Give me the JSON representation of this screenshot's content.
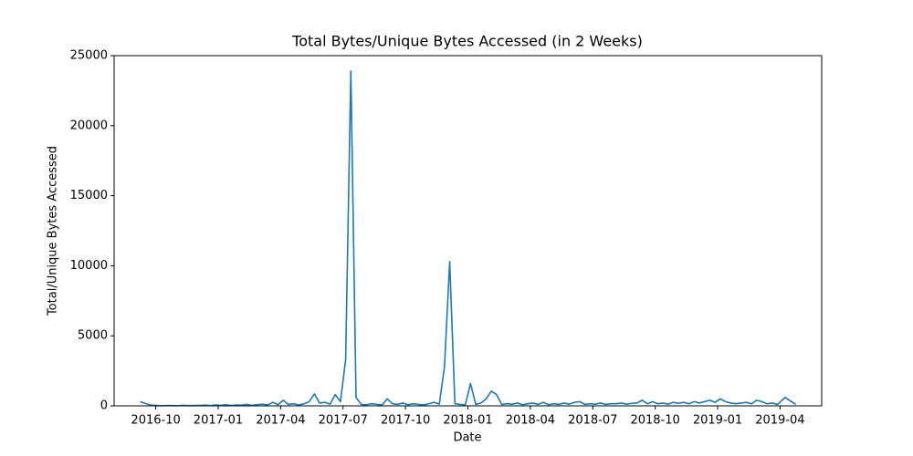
{
  "chart_data": {
    "type": "line",
    "title": "Total Bytes/Unique Bytes Accessed (in 2 Weeks)",
    "x_label": "Date",
    "y_label": "Total/Unique Bytes Accessed",
    "x": [
      "2016-09",
      "2016-09",
      "2016-10",
      "2016-10",
      "2016-10",
      "2016-10",
      "2016-11",
      "2016-11",
      "2016-11",
      "2016-11",
      "2016-12",
      "2016-12",
      "2016-12",
      "2016-12",
      "2017-01",
      "2017-01",
      "2017-01",
      "2017-01",
      "2017-02",
      "2017-02",
      "2017-02",
      "2017-02",
      "2017-03",
      "2017-03",
      "2017-03",
      "2017-03",
      "2017-04",
      "2017-04",
      "2017-04",
      "2017-04",
      "2017-05",
      "2017-05",
      "2017-05",
      "2017-05",
      "2017-06",
      "2017-06",
      "2017-06",
      "2017-06",
      "2017-07",
      "2017-07",
      "2017-07",
      "2017-07",
      "2017-08",
      "2017-08",
      "2017-08",
      "2017-08",
      "2017-09",
      "2017-09",
      "2017-09",
      "2017-09",
      "2017-10",
      "2017-10",
      "2017-10",
      "2017-10",
      "2017-11",
      "2017-11",
      "2017-11",
      "2017-11",
      "2017-12",
      "2017-12",
      "2017-12",
      "2017-12",
      "2018-01",
      "2018-01",
      "2018-01",
      "2018-01",
      "2018-02",
      "2018-02",
      "2018-02",
      "2018-02",
      "2018-03",
      "2018-03",
      "2018-03",
      "2018-03",
      "2018-04",
      "2018-04",
      "2018-04",
      "2018-04",
      "2018-05",
      "2018-05",
      "2018-05",
      "2018-05",
      "2018-06",
      "2018-06",
      "2018-06",
      "2018-06",
      "2018-07",
      "2018-07",
      "2018-07",
      "2018-07",
      "2018-08",
      "2018-08",
      "2018-08",
      "2018-08",
      "2018-09",
      "2018-09",
      "2018-09",
      "2018-09",
      "2018-10",
      "2018-10",
      "2018-10",
      "2018-10",
      "2018-11",
      "2018-11",
      "2018-11",
      "2018-11",
      "2018-12",
      "2018-12",
      "2018-12",
      "2018-12",
      "2019-01",
      "2019-01",
      "2019-01",
      "2019-01",
      "2019-02",
      "2019-02",
      "2019-02",
      "2019-02",
      "2019-03",
      "2019-03",
      "2019-03",
      "2019-03",
      "2019-04",
      "2019-04"
    ],
    "series": [
      {
        "color": "#1f77b4",
        "values": [
          300,
          50,
          20,
          10,
          30,
          15,
          20,
          40,
          10,
          30,
          30,
          50,
          20,
          60,
          40,
          80,
          30,
          60,
          50,
          100,
          40,
          90,
          120,
          60,
          250,
          80,
          400,
          100,
          150,
          60,
          150,
          300,
          850,
          200,
          250,
          120,
          800,
          300,
          3300,
          23900,
          600,
          100,
          80,
          150,
          100,
          60,
          500,
          150,
          100,
          200,
          80,
          150,
          100,
          60,
          150,
          250,
          120,
          2800,
          10300,
          150,
          100,
          80,
          1600,
          100,
          200,
          500,
          1050,
          800,
          100,
          150,
          120,
          200,
          80,
          150,
          200,
          100,
          250,
          80,
          150,
          100,
          200,
          120,
          250,
          300,
          100,
          150,
          120,
          200,
          100,
          150,
          150,
          200,
          120,
          180,
          200,
          400,
          150,
          300,
          150,
          200,
          120,
          250,
          180,
          250,
          150,
          300,
          200,
          300,
          400,
          250,
          500,
          300,
          200,
          150,
          200,
          250,
          150,
          400,
          300,
          150,
          200,
          100,
          600,
          100
        ]
      }
    ],
    "xlim": [
      "2016-08",
      "2019-06"
    ],
    "xticks": [
      "2016-10",
      "2017-01",
      "2017-04",
      "2017-07",
      "2017-10",
      "2018-01",
      "2018-04",
      "2018-07",
      "2018-10",
      "2019-01",
      "2019-04"
    ],
    "ylim": [
      0,
      25000
    ],
    "yticks": [
      0,
      5000,
      10000,
      15000,
      20000,
      25000
    ],
    "grid": false
  }
}
